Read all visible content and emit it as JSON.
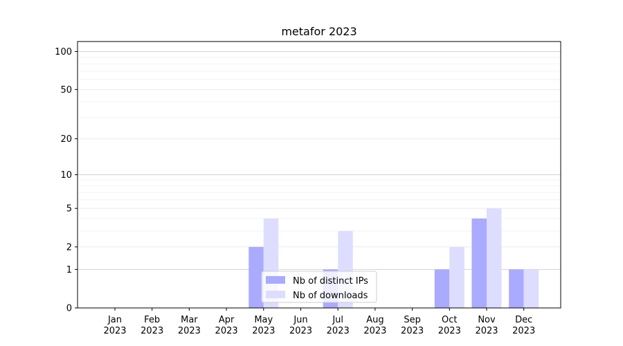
{
  "chart_data": {
    "type": "bar",
    "title": "metafor 2023",
    "categories": [
      "Jan\n2023",
      "Feb\n2023",
      "Mar\n2023",
      "Apr\n2023",
      "May\n2023",
      "Jun\n2023",
      "Jul\n2023",
      "Aug\n2023",
      "Sep\n2023",
      "Oct\n2023",
      "Nov\n2023",
      "Dec\n2023"
    ],
    "series": [
      {
        "name": "Nb of distinct IPs",
        "color": "#aaaaff",
        "values": [
          0,
          0,
          0,
          0,
          2,
          0,
          1,
          0,
          0,
          1,
          4,
          1
        ]
      },
      {
        "name": "Nb of downloads",
        "color": "#ddddff",
        "values": [
          0,
          0,
          0,
          0,
          4,
          0,
          3,
          0,
          0,
          2,
          5,
          1
        ]
      }
    ],
    "y_scale": "symlog",
    "ylim": [
      0,
      120
    ],
    "yticks": [
      0,
      1,
      2,
      5,
      10,
      20,
      50,
      100
    ],
    "grid": true,
    "legend_position": "lower center"
  }
}
